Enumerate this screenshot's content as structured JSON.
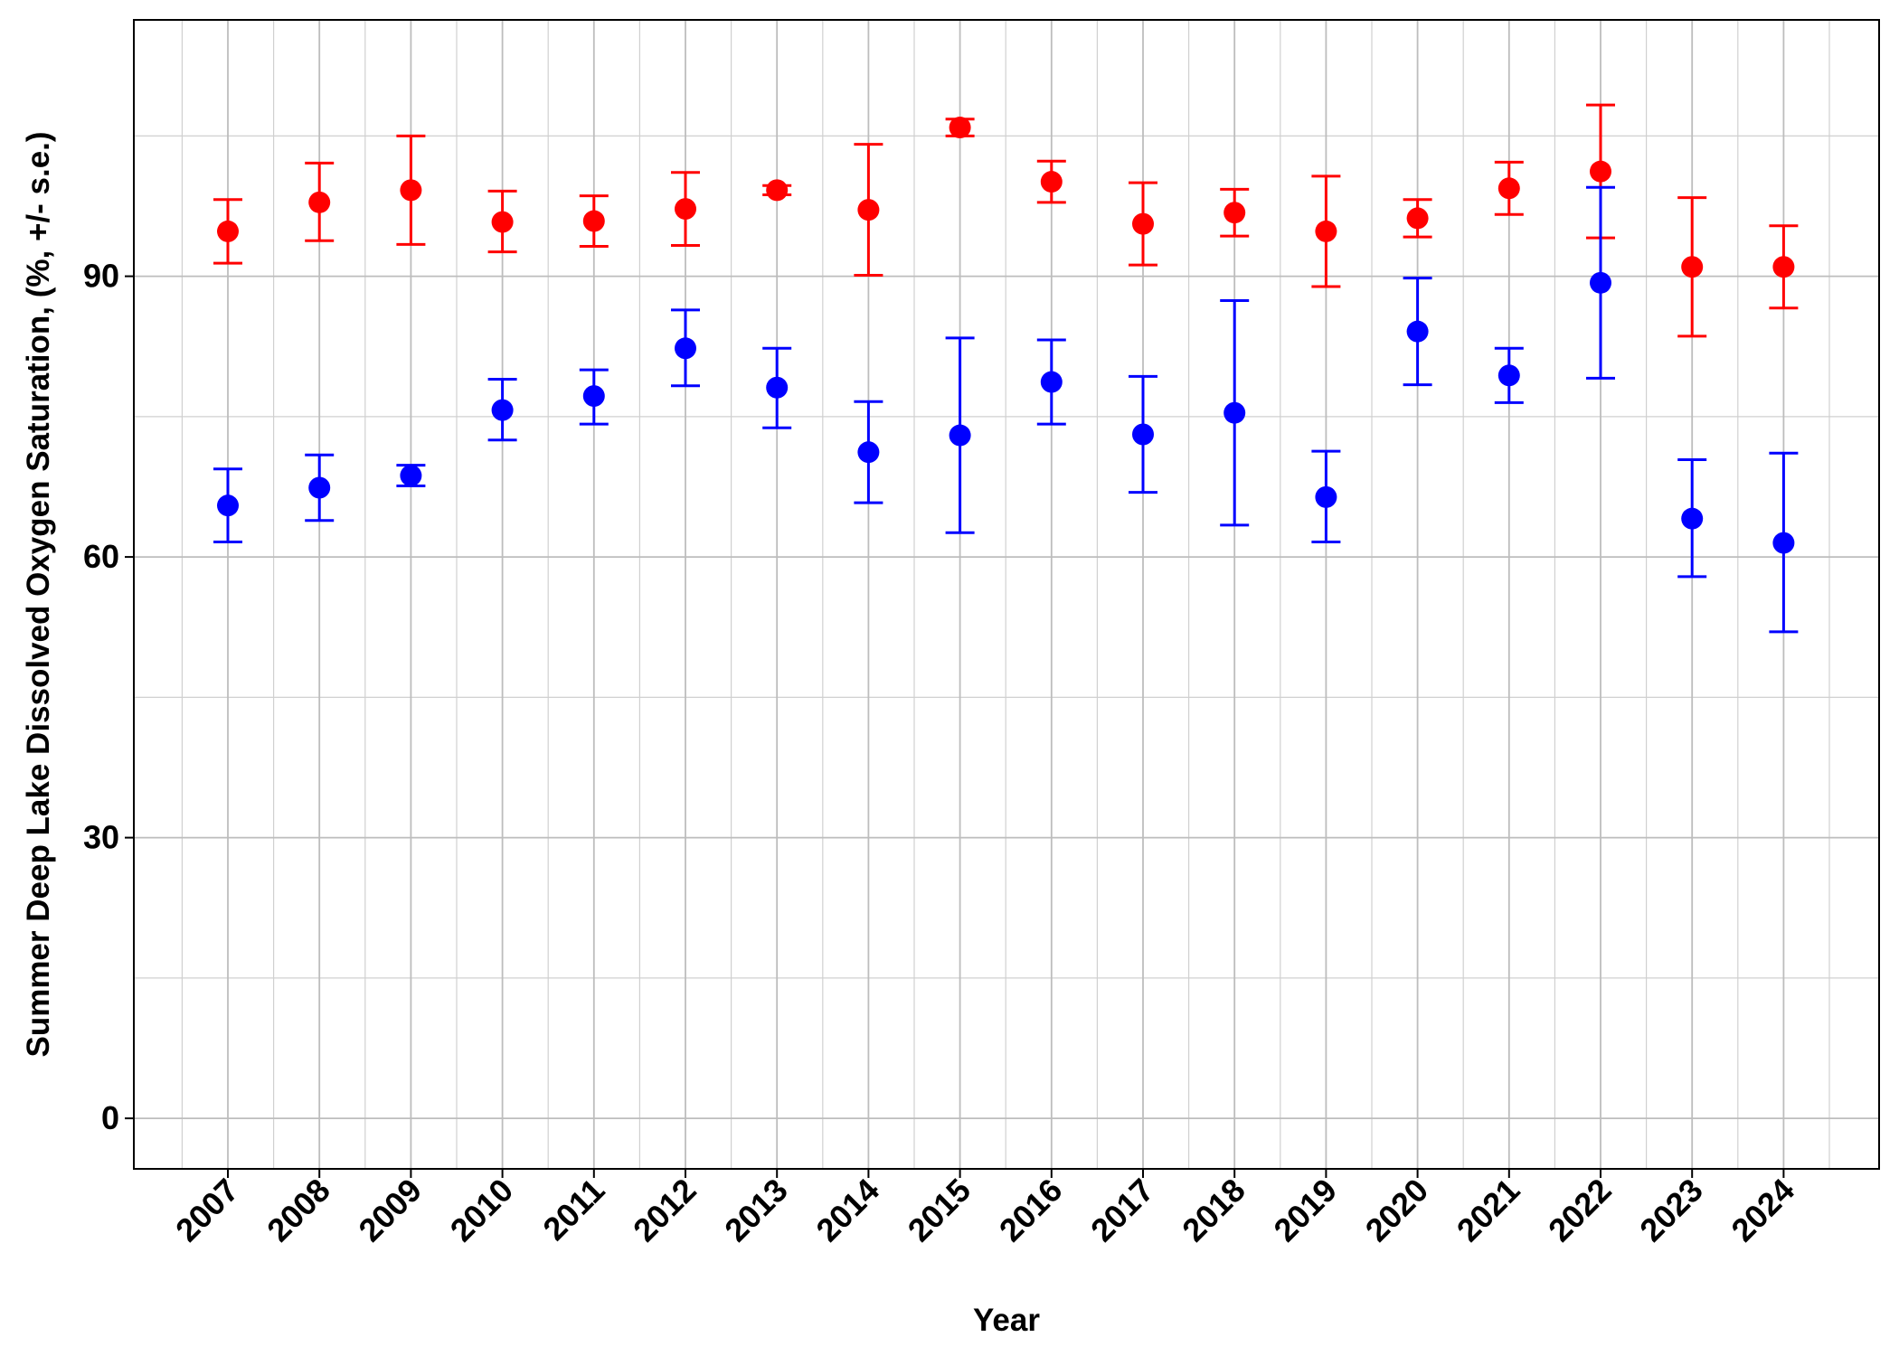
{
  "chart_data": {
    "type": "scatter",
    "xlabel": "Year",
    "ylabel": "Summer Deep Lake Dissolved Oxygen Saturation, (%, +/- s.e.)",
    "categories": [
      "2007",
      "2008",
      "2009",
      "2010",
      "2011",
      "2012",
      "2013",
      "2014",
      "2015",
      "2016",
      "2017",
      "2018",
      "2019",
      "2020",
      "2021",
      "2022",
      "2023",
      "2024"
    ],
    "ylim": [
      -5.4,
      117.4
    ],
    "yticks": [
      0,
      30,
      60,
      90
    ],
    "grid": true,
    "legend": "none",
    "series": [
      {
        "color": "#ff0000",
        "values": [
          94.8,
          97.9,
          99.2,
          95.8,
          95.9,
          97.2,
          99.2,
          97.1,
          105.9,
          100.1,
          95.6,
          96.8,
          94.8,
          96.2,
          99.4,
          101.2,
          91.0,
          91.0
        ],
        "lower": [
          91.4,
          93.8,
          93.4,
          92.6,
          93.2,
          93.3,
          98.7,
          90.1,
          105.0,
          97.9,
          91.2,
          94.3,
          88.9,
          94.2,
          96.6,
          94.1,
          83.6,
          86.6
        ],
        "upper": [
          98.2,
          102.1,
          105.0,
          99.1,
          98.6,
          101.1,
          99.7,
          104.1,
          106.8,
          102.3,
          100.0,
          99.3,
          100.7,
          98.2,
          102.2,
          108.3,
          98.4,
          95.4
        ]
      },
      {
        "color": "#0000ff",
        "values": [
          65.5,
          67.4,
          68.7,
          75.7,
          77.2,
          82.3,
          78.1,
          71.2,
          73.0,
          78.7,
          73.1,
          75.4,
          66.4,
          84.1,
          79.4,
          89.3,
          64.1,
          61.5
        ],
        "lower": [
          61.6,
          63.9,
          67.6,
          72.5,
          74.2,
          78.3,
          73.8,
          65.8,
          62.6,
          74.2,
          66.9,
          63.4,
          61.6,
          78.4,
          76.5,
          79.1,
          57.9,
          52.0
        ],
        "upper": [
          69.4,
          70.9,
          69.8,
          79.0,
          80.0,
          86.4,
          82.3,
          76.6,
          83.4,
          83.2,
          79.3,
          87.4,
          71.3,
          89.8,
          82.3,
          99.5,
          70.4,
          71.1
        ]
      }
    ]
  }
}
